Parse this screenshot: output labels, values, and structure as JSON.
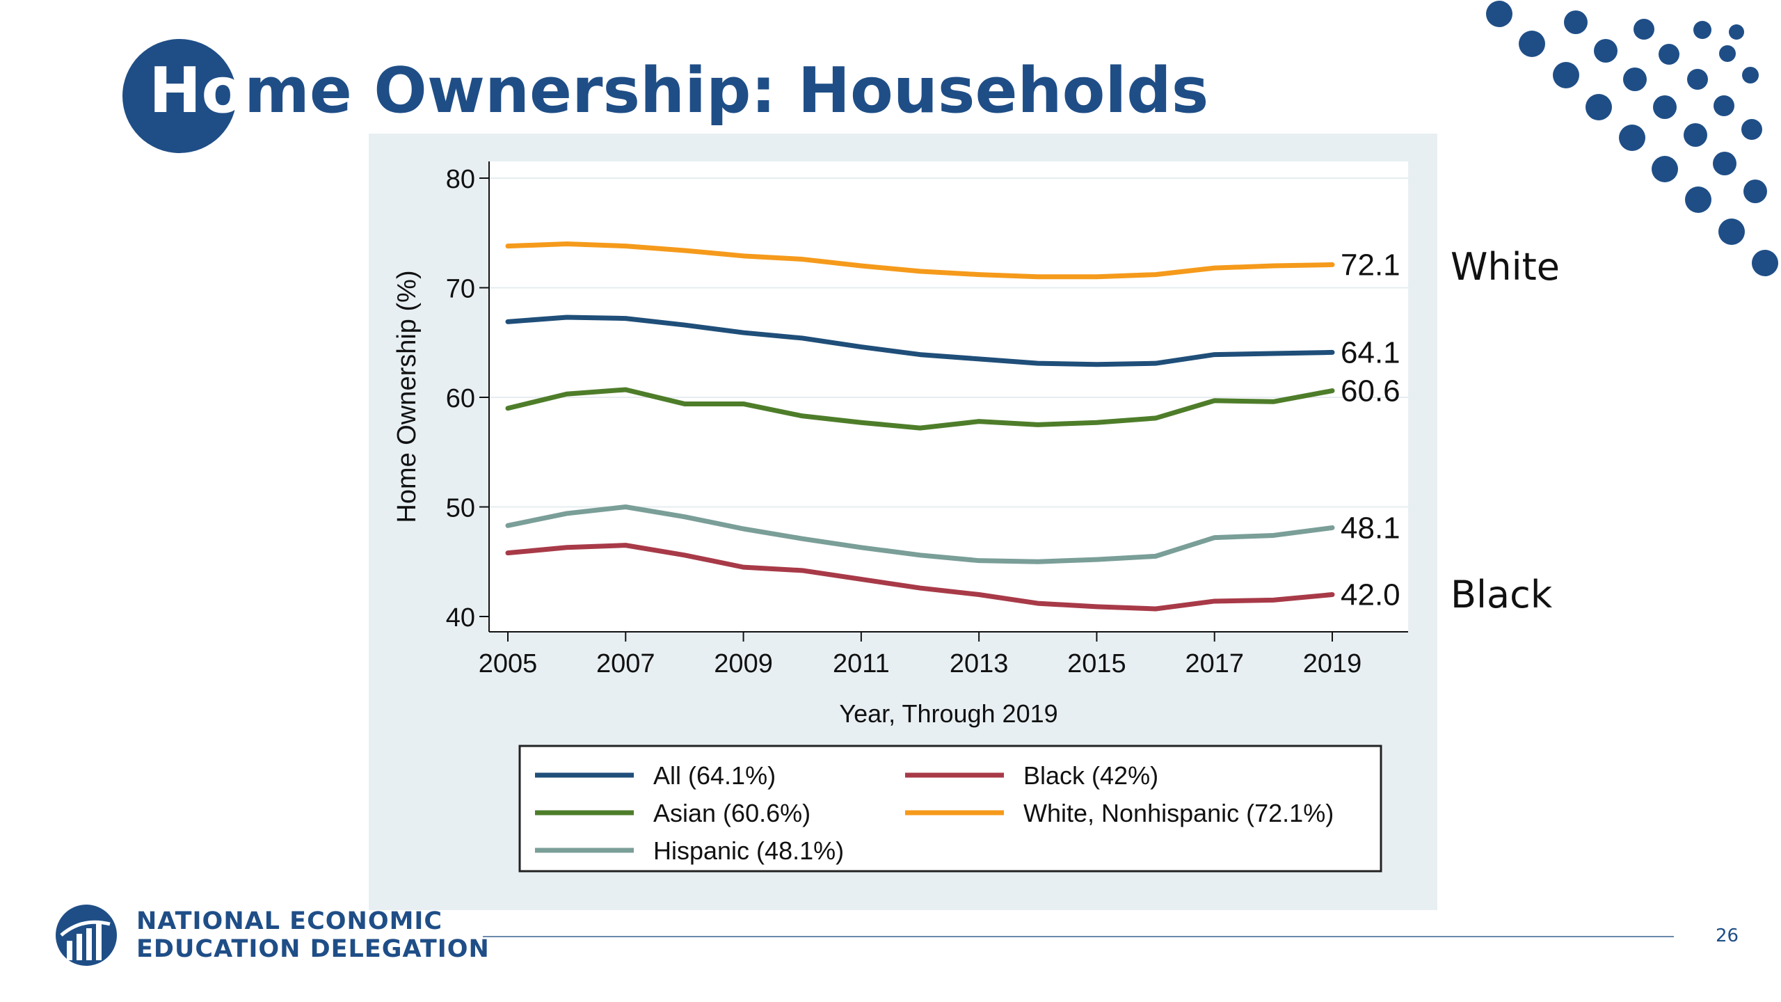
{
  "slide": {
    "title_prefix": "Ho",
    "title_rest": "me Ownership: Households",
    "side_labels": {
      "white": "White",
      "black": "Black"
    },
    "footer": {
      "org_line1": "NATIONAL ECONOMIC",
      "org_line2": "EDUCATION DELEGATION",
      "page_number": "26"
    }
  },
  "colors": {
    "brand_blue": "#1f4e87",
    "panel_bg": "#e8eff3",
    "plot_bg": "#ffffff"
  },
  "chart_data": {
    "type": "line",
    "title": "",
    "xlabel": "Year, Through 2019",
    "ylabel": "Home Ownership (%)",
    "xlim": [
      2005,
      2019
    ],
    "ylim": [
      40,
      80
    ],
    "x_ticks": [
      2005,
      2007,
      2009,
      2011,
      2013,
      2015,
      2017,
      2019
    ],
    "y_ticks": [
      40,
      50,
      60,
      70,
      80
    ],
    "grid": "horizontal",
    "legend_position": "bottom",
    "x": [
      2005,
      2006,
      2007,
      2008,
      2009,
      2010,
      2011,
      2012,
      2013,
      2014,
      2015,
      2016,
      2017,
      2018,
      2019
    ],
    "series": [
      {
        "name": "All (64.1%)",
        "color": "#1f4e79",
        "end_label": "64.1",
        "values": [
          66.9,
          67.3,
          67.2,
          66.6,
          65.9,
          65.4,
          64.6,
          63.9,
          63.5,
          63.1,
          63.0,
          63.1,
          63.9,
          64.0,
          64.1
        ]
      },
      {
        "name": "Black (42%)",
        "color": "#a83a48",
        "end_label": "42.0",
        "values": [
          45.8,
          46.3,
          46.5,
          45.6,
          44.5,
          44.2,
          43.4,
          42.6,
          42.0,
          41.2,
          40.9,
          40.7,
          41.4,
          41.5,
          42.0
        ]
      },
      {
        "name": "Asian (60.6%)",
        "color": "#4e7d2a",
        "end_label": "60.6",
        "values": [
          59.0,
          60.3,
          60.7,
          59.4,
          59.4,
          58.3,
          57.7,
          57.2,
          57.8,
          57.5,
          57.7,
          58.1,
          59.7,
          59.6,
          60.6
        ]
      },
      {
        "name": "White, Nonhispanic (72.1%)",
        "color": "#f59a1b",
        "end_label": "72.1",
        "values": [
          73.8,
          74.0,
          73.8,
          73.4,
          72.9,
          72.6,
          72.0,
          71.5,
          71.2,
          71.0,
          71.0,
          71.2,
          71.8,
          72.0,
          72.1
        ]
      },
      {
        "name": "Hispanic (48.1%)",
        "color": "#7a9e98",
        "end_label": "48.1",
        "values": [
          48.3,
          49.4,
          50.0,
          49.1,
          48.0,
          47.1,
          46.3,
          45.6,
          45.1,
          45.0,
          45.2,
          45.5,
          47.2,
          47.4,
          48.1
        ]
      }
    ]
  }
}
